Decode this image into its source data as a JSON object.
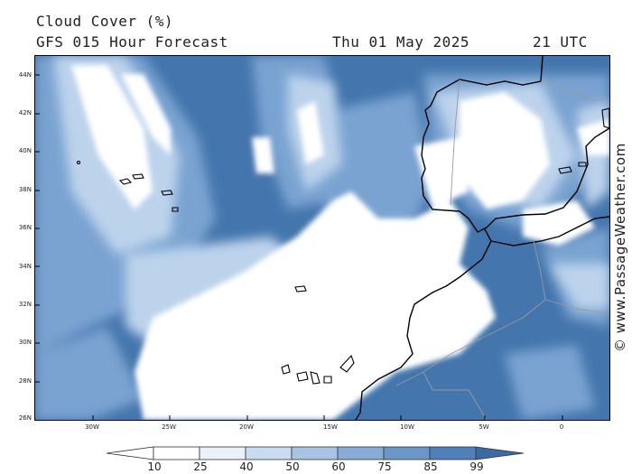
{
  "title": {
    "variable": "Cloud Cover (%)",
    "model": "GFS 015 Hour Forecast",
    "date": "Thu 01 May 2025",
    "time": "21 UTC"
  },
  "map": {
    "lat_labels": [
      "44N",
      "42N",
      "40N",
      "38N",
      "36N",
      "34N",
      "32N",
      "30N",
      "28N",
      "26N"
    ],
    "lon_labels": [
      "30W",
      "25W",
      "20W",
      "15W",
      "10W",
      "5W",
      "0"
    ],
    "lon_range": [
      -35,
      3
    ],
    "lat_range": [
      26,
      45
    ]
  },
  "credit": "© www.PassageWeather.com",
  "legend": {
    "labels": [
      "10",
      "25",
      "40",
      "50",
      "60",
      "75",
      "85",
      "99"
    ],
    "colors": [
      "#ffffff",
      "#eaf1f9",
      "#c9dbee",
      "#a8c4e2",
      "#88acd6",
      "#6a96c8",
      "#4f80b9",
      "#3d6aa5"
    ]
  },
  "palette": {
    "ocean_dark": "#4476ad",
    "mid_blue": "#6f9bcb",
    "light_blue": "#b7cfe9",
    "clear": "#ffffff",
    "coastline": "#000000",
    "border": "#999999"
  }
}
